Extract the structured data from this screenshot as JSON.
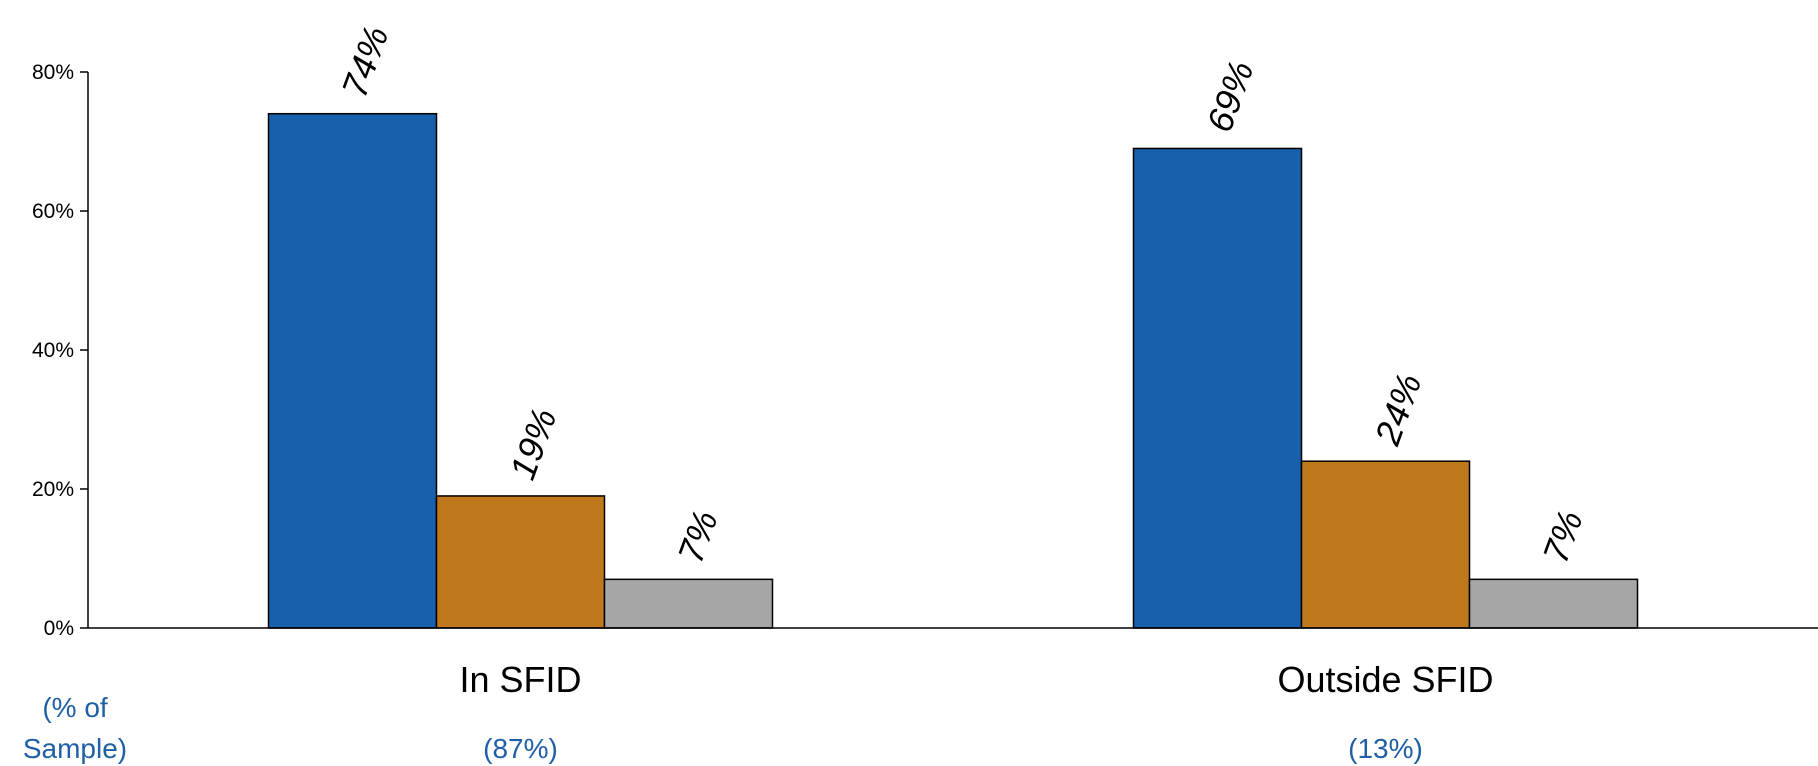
{
  "chart_data": {
    "type": "bar",
    "categories": [
      "In SFID",
      "Outside SFID"
    ],
    "category_sample_shares": [
      "(87%)",
      "(13%)"
    ],
    "sample_caption": [
      "(% of",
      "Sample)"
    ],
    "series": [
      {
        "values": [
          74,
          69
        ],
        "color": "#1860ab"
      },
      {
        "values": [
          19,
          24
        ],
        "color": "#c0781d"
      },
      {
        "values": [
          7,
          7
        ],
        "color": "#a6a6a6"
      }
    ],
    "data_labels": [
      [
        "74%",
        "69%"
      ],
      [
        "19%",
        "24%"
      ],
      [
        "7%",
        "7%"
      ]
    ],
    "ylim": [
      0,
      80
    ],
    "yticks": [
      0,
      20,
      40,
      60,
      80
    ],
    "ytick_labels": [
      "0%",
      "20%",
      "40%",
      "60%",
      "80%"
    ],
    "grid": false,
    "legend": "none",
    "title": "",
    "xlabel": "",
    "ylabel": ""
  }
}
